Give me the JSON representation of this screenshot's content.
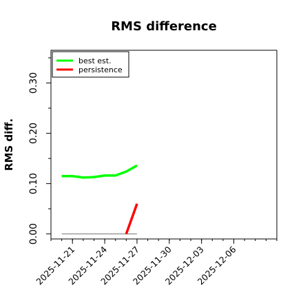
{
  "chart_data": {
    "type": "line",
    "title": "RMS difference",
    "xlabel": "",
    "ylabel": "RMS diff.",
    "ylim": [
      -0.01,
      0.365
    ],
    "xlim": [
      "2025-11-19",
      "2025-12-10"
    ],
    "yticks": [
      "0.00",
      "0.10",
      "0.20",
      "0.30"
    ],
    "ytick_values": [
      0.0,
      0.1,
      0.2,
      0.3
    ],
    "xticks": [
      "2025-11-21",
      "2025-11-24",
      "2025-11-27",
      "2025-11-30",
      "2025-12-03",
      "2025-12-06"
    ],
    "legend_position": "top-left",
    "grid": false,
    "reference_line": {
      "y": 0.0,
      "x_start": "2025-11-20",
      "x_end": "2025-11-27",
      "color": "#808080"
    },
    "series": [
      {
        "name": "best est.",
        "color": "#00ff00",
        "x": [
          "2025-11-20",
          "2025-11-21",
          "2025-11-22",
          "2025-11-23",
          "2025-11-24",
          "2025-11-25",
          "2025-11-26",
          "2025-11-27"
        ],
        "y": [
          0.115,
          0.115,
          0.112,
          0.113,
          0.116,
          0.116,
          0.124,
          0.136
        ]
      },
      {
        "name": "persistence",
        "color": "#ff0000",
        "x": [
          "2025-11-26",
          "2025-11-27"
        ],
        "y": [
          0.0,
          0.06
        ]
      }
    ]
  }
}
